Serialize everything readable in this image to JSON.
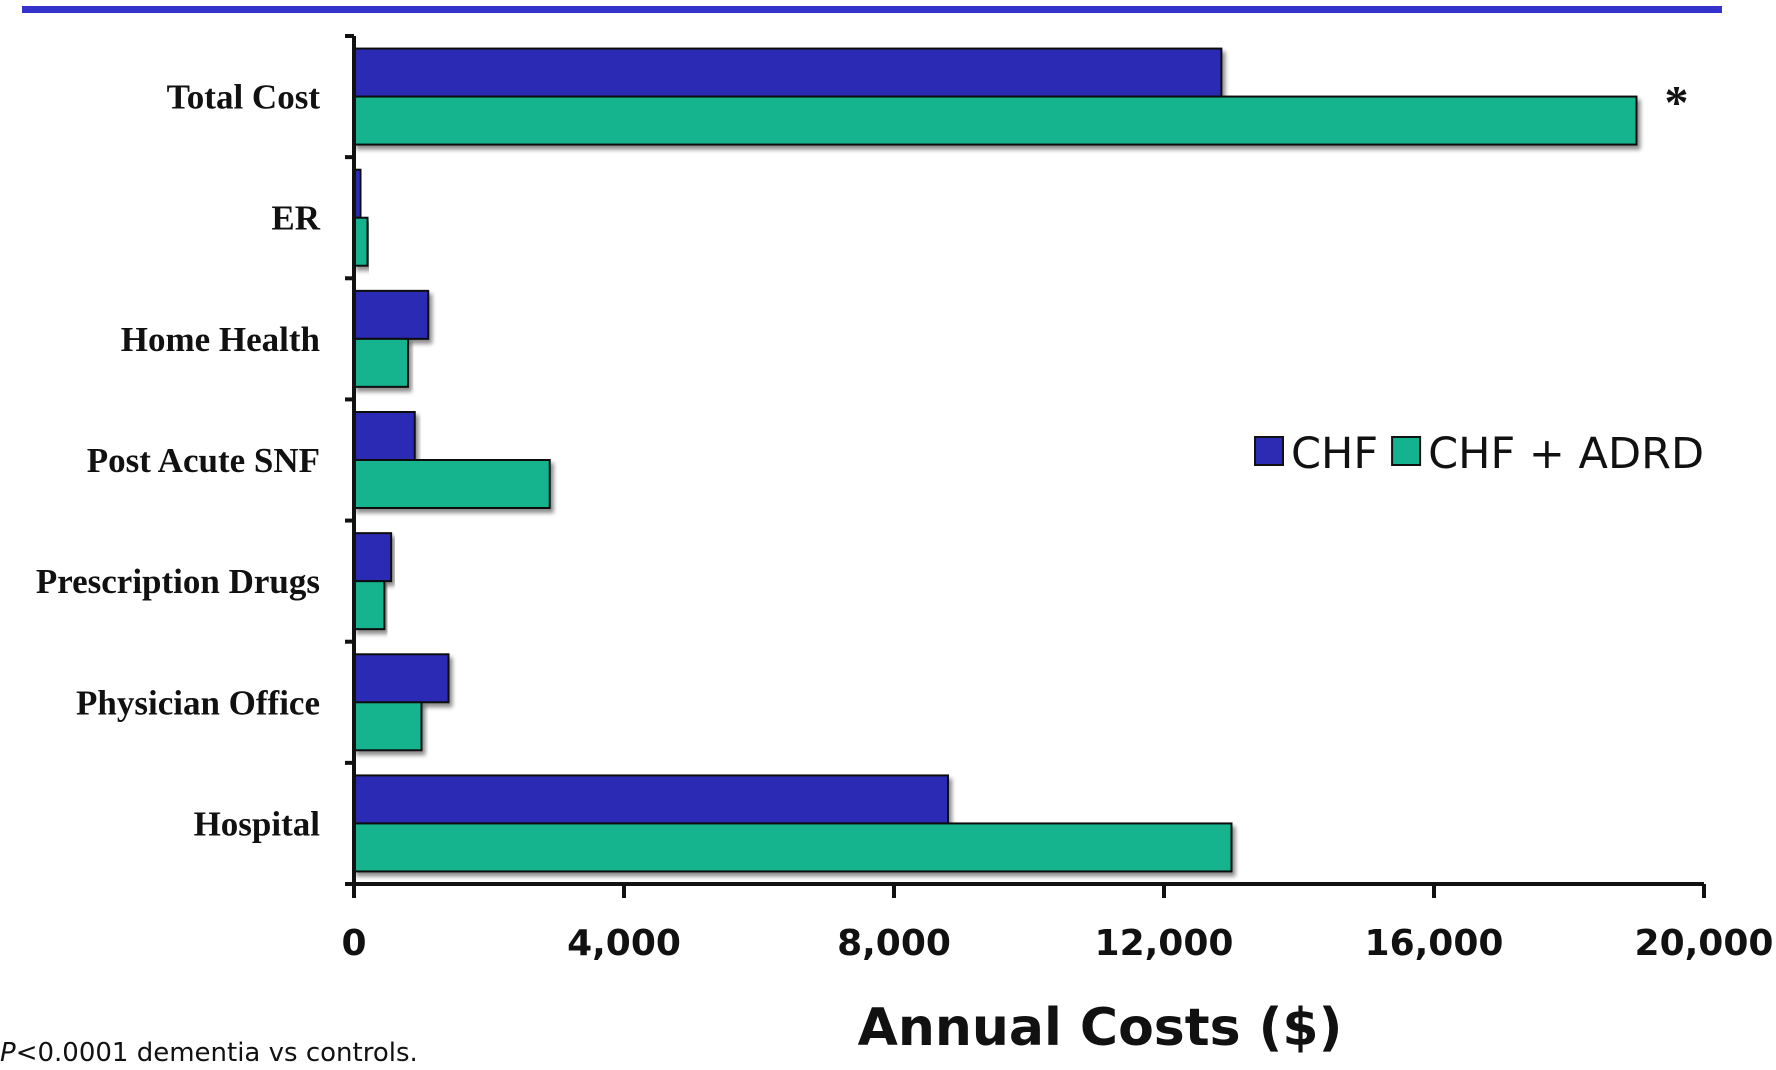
{
  "chart_data": {
    "type": "bar",
    "orientation": "horizontal",
    "categories": [
      "Total Cost",
      "ER",
      "Home Health",
      "Post Acute SNF",
      "Prescription Drugs",
      "Physician Office",
      "Hospital"
    ],
    "series": [
      {
        "name": "CHF",
        "color": "#2b2bb4",
        "values": [
          12850,
          100,
          1100,
          900,
          550,
          1400,
          8800
        ]
      },
      {
        "name": "CHF + ADRD",
        "color": "#13b38f",
        "values": [
          19000,
          200,
          800,
          2900,
          450,
          1000,
          13000
        ]
      }
    ],
    "xlabel": "Annual Costs ($)",
    "xlim": [
      0,
      20000
    ],
    "xticks": [
      {
        "value": 0,
        "label": "0"
      },
      {
        "value": 4000,
        "label": "4,000"
      },
      {
        "value": 8000,
        "label": "8,000"
      },
      {
        "value": 12000,
        "label": "12,000"
      },
      {
        "value": 16000,
        "label": "16,000"
      },
      {
        "value": 20000,
        "label": "20,000"
      }
    ],
    "legend_position": "right",
    "grid": false,
    "annotations": [
      {
        "category": "Total Cost",
        "text": "*"
      }
    ]
  },
  "footnote": {
    "p_symbol": "P",
    "text": "<0.0001 dementia vs controls."
  },
  "colors": {
    "top_rule": "#3333cc",
    "axis": "#111111"
  }
}
